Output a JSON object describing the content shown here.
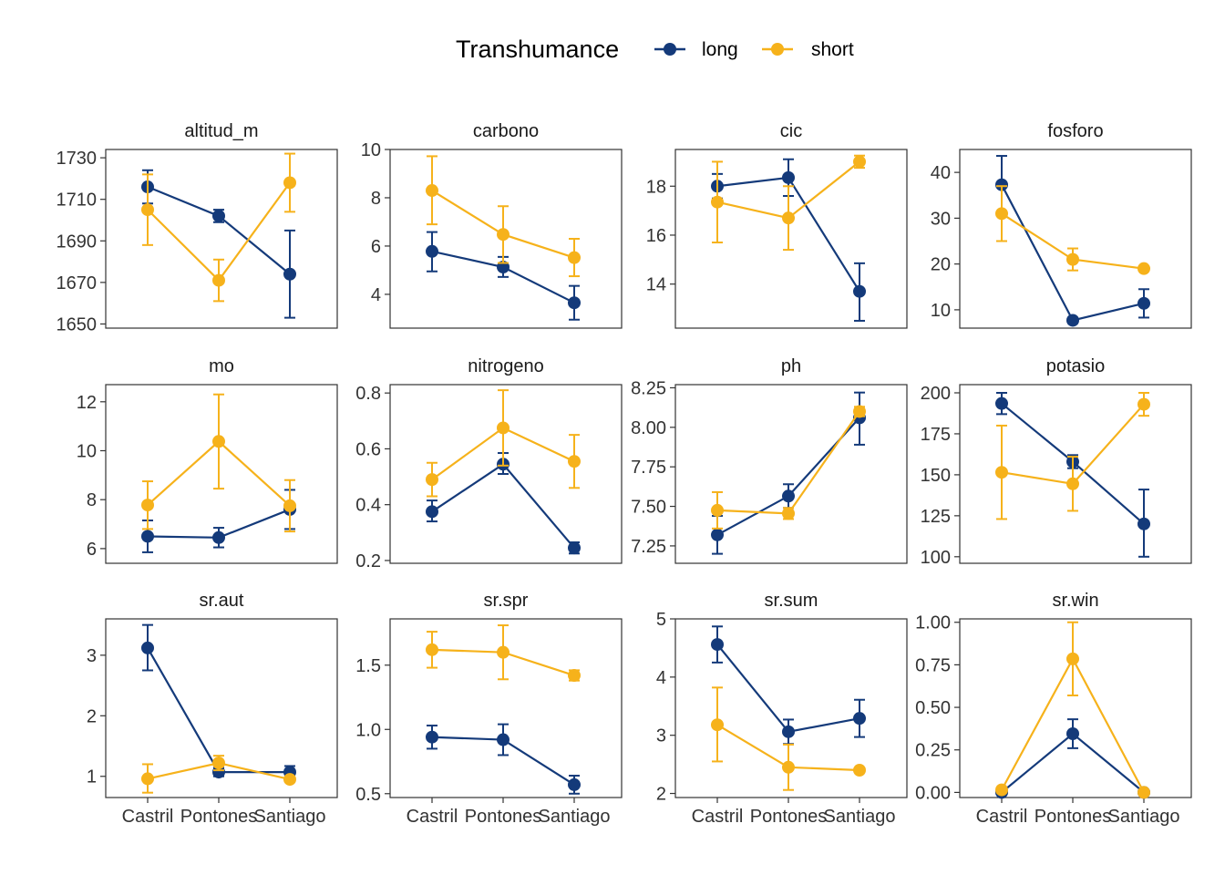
{
  "legend": {
    "title": "Transhumance",
    "position": "top",
    "items": [
      {
        "label": "long",
        "color": "#143a7a"
      },
      {
        "label": "short",
        "color": "#f6b21b"
      }
    ]
  },
  "chart_data": {
    "type": "line",
    "layout": "facet-grid-3x4",
    "grid": false,
    "x_categories": [
      "Castril",
      "Pontones",
      "Santiago"
    ],
    "series_names": [
      "long",
      "short"
    ],
    "series_colors": {
      "long": "#143a7a",
      "short": "#f6b21b"
    },
    "facets": [
      {
        "title": "altitud_m",
        "ylim": [
          1648,
          1734
        ],
        "yticks": [
          1650,
          1670,
          1690,
          1710,
          1730
        ],
        "tick_labels": [
          "1650",
          "1670",
          "1690",
          "1710",
          "1730"
        ],
        "series": [
          {
            "name": "long",
            "y": [
              1716,
              1702,
              1674
            ],
            "lo": [
              1708,
              1699,
              1653
            ],
            "hi": [
              1724,
              1705,
              1695
            ]
          },
          {
            "name": "short",
            "y": [
              1705,
              1671,
              1718
            ],
            "lo": [
              1688,
              1661,
              1704
            ],
            "hi": [
              1722,
              1681,
              1732
            ]
          }
        ]
      },
      {
        "title": "carbono",
        "ylim": [
          2.6,
          10.0
        ],
        "yticks": [
          4,
          6,
          8,
          10
        ],
        "tick_labels": [
          "4",
          "6",
          "8",
          "10"
        ],
        "series": [
          {
            "name": "long",
            "y": [
              5.78,
              5.13,
              3.65
            ],
            "lo": [
              4.95,
              4.72,
              2.95
            ],
            "hi": [
              6.58,
              5.55,
              4.35
            ]
          },
          {
            "name": "short",
            "y": [
              8.3,
              6.48,
              5.52
            ],
            "lo": [
              6.9,
              5.3,
              4.75
            ],
            "hi": [
              9.72,
              7.65,
              6.3
            ]
          }
        ]
      },
      {
        "title": "cic",
        "ylim": [
          12.2,
          19.5
        ],
        "yticks": [
          14,
          16,
          18
        ],
        "tick_labels": [
          "14",
          "16",
          "18"
        ],
        "series": [
          {
            "name": "long",
            "y": [
              18.0,
              18.35,
              13.7
            ],
            "lo": [
              17.5,
              17.6,
              12.5
            ],
            "hi": [
              18.5,
              19.1,
              14.85
            ]
          },
          {
            "name": "short",
            "y": [
              17.35,
              16.7,
              19.0
            ],
            "lo": [
              15.7,
              15.4,
              18.75
            ],
            "hi": [
              19.0,
              18.0,
              19.25
            ]
          }
        ]
      },
      {
        "title": "fosforo",
        "ylim": [
          6.0,
          45.0
        ],
        "yticks": [
          10,
          20,
          30,
          40
        ],
        "tick_labels": [
          "10",
          "20",
          "30",
          "40"
        ],
        "series": [
          {
            "name": "long",
            "y": [
              37.3,
              7.7,
              11.4
            ],
            "lo": [
              31.0,
              7.1,
              8.3
            ],
            "hi": [
              43.6,
              8.3,
              14.5
            ]
          },
          {
            "name": "short",
            "y": [
              31.0,
              21.0,
              19.0
            ],
            "lo": [
              25.0,
              18.6,
              18.6
            ],
            "hi": [
              37.0,
              23.4,
              19.4
            ]
          }
        ]
      },
      {
        "title": "mo",
        "ylim": [
          5.4,
          12.7
        ],
        "yticks": [
          6,
          8,
          10,
          12
        ],
        "tick_labels": [
          "6",
          "8",
          "10",
          "12"
        ],
        "series": [
          {
            "name": "long",
            "y": [
              6.5,
              6.45,
              7.6
            ],
            "lo": [
              5.85,
              6.05,
              6.8
            ],
            "hi": [
              7.15,
              6.85,
              8.4
            ]
          },
          {
            "name": "short",
            "y": [
              7.78,
              10.38,
              7.75
            ],
            "lo": [
              6.8,
              8.45,
              6.7
            ],
            "hi": [
              8.75,
              12.3,
              8.8
            ]
          }
        ]
      },
      {
        "title": "nitrogeno",
        "ylim": [
          0.19,
          0.83
        ],
        "yticks": [
          0.2,
          0.4,
          0.6,
          0.8
        ],
        "tick_labels": [
          "0.2",
          "0.4",
          "0.6",
          "0.8"
        ],
        "series": [
          {
            "name": "long",
            "y": [
              0.375,
              0.545,
              0.245
            ],
            "lo": [
              0.34,
              0.51,
              0.225
            ],
            "hi": [
              0.415,
              0.585,
              0.265
            ]
          },
          {
            "name": "short",
            "y": [
              0.49,
              0.675,
              0.555
            ],
            "lo": [
              0.43,
              0.54,
              0.46
            ],
            "hi": [
              0.55,
              0.81,
              0.65
            ]
          }
        ]
      },
      {
        "title": "ph",
        "ylim": [
          7.14,
          8.27
        ],
        "yticks": [
          7.25,
          7.5,
          7.75,
          8.0,
          8.25
        ],
        "tick_labels": [
          "7.25",
          "7.50",
          "7.75",
          "8.00",
          "8.25"
        ],
        "series": [
          {
            "name": "long",
            "y": [
              7.32,
              7.565,
              8.06
            ],
            "lo": [
              7.2,
              7.49,
              7.89
            ],
            "hi": [
              7.44,
              7.64,
              8.22
            ]
          },
          {
            "name": "short",
            "y": [
              7.475,
              7.455,
              8.1
            ],
            "lo": [
              7.36,
              7.42,
              8.07
            ],
            "hi": [
              7.59,
              7.49,
              8.13
            ]
          }
        ]
      },
      {
        "title": "potasio",
        "ylim": [
          96,
          205
        ],
        "yticks": [
          100,
          125,
          150,
          175,
          200
        ],
        "tick_labels": [
          "100",
          "125",
          "150",
          "175",
          "200"
        ],
        "series": [
          {
            "name": "long",
            "y": [
              193.5,
              158.0,
              120.0
            ],
            "lo": [
              187,
              154,
              100
            ],
            "hi": [
              200,
              162,
              141
            ]
          },
          {
            "name": "short",
            "y": [
              151.5,
              144.5,
              193.0
            ],
            "lo": [
              123,
              128,
              186
            ],
            "hi": [
              180,
              161,
              200
            ]
          }
        ]
      },
      {
        "title": "sr.aut",
        "ylim": [
          0.65,
          3.6
        ],
        "yticks": [
          1,
          2,
          3
        ],
        "tick_labels": [
          "1",
          "2",
          "3"
        ],
        "series": [
          {
            "name": "long",
            "y": [
              3.12,
              1.07,
              1.07
            ],
            "lo": [
              2.75,
              1.0,
              0.97
            ],
            "hi": [
              3.5,
              1.14,
              1.17
            ]
          },
          {
            "name": "short",
            "y": [
              0.96,
              1.22,
              0.95
            ],
            "lo": [
              0.73,
              1.1,
              0.92
            ],
            "hi": [
              1.2,
              1.34,
              0.98
            ]
          }
        ]
      },
      {
        "title": "sr.spr",
        "ylim": [
          0.47,
          1.86
        ],
        "yticks": [
          0.5,
          1.0,
          1.5
        ],
        "tick_labels": [
          "0.5",
          "1.0",
          "1.5"
        ],
        "series": [
          {
            "name": "long",
            "y": [
              0.94,
              0.92,
              0.57
            ],
            "lo": [
              0.85,
              0.8,
              0.5
            ],
            "hi": [
              1.03,
              1.04,
              0.64
            ]
          },
          {
            "name": "short",
            "y": [
              1.62,
              1.6,
              1.42
            ],
            "lo": [
              1.48,
              1.39,
              1.38
            ],
            "hi": [
              1.76,
              1.81,
              1.46
            ]
          }
        ]
      },
      {
        "title": "sr.sum",
        "ylim": [
          1.93,
          5.0
        ],
        "yticks": [
          2,
          3,
          4,
          5
        ],
        "tick_labels": [
          "2",
          "3",
          "4",
          "5"
        ],
        "series": [
          {
            "name": "long",
            "y": [
              4.56,
              3.06,
              3.29
            ],
            "lo": [
              4.25,
              2.85,
              2.97
            ],
            "hi": [
              4.87,
              3.27,
              3.61
            ]
          },
          {
            "name": "short",
            "y": [
              3.18,
              2.45,
              2.4
            ],
            "lo": [
              2.55,
              2.06,
              2.37
            ],
            "hi": [
              3.82,
              2.84,
              2.43
            ]
          }
        ]
      },
      {
        "title": "sr.win",
        "ylim": [
          -0.03,
          1.02
        ],
        "yticks": [
          0.0,
          0.25,
          0.5,
          0.75,
          1.0
        ],
        "tick_labels": [
          "0.00",
          "0.25",
          "0.50",
          "0.75",
          "1.00"
        ],
        "series": [
          {
            "name": "long",
            "y": [
              0.0,
              0.345,
              0.0
            ],
            "lo": [
              0.0,
              0.26,
              0.0
            ],
            "hi": [
              0.0,
              0.43,
              0.0
            ]
          },
          {
            "name": "short",
            "y": [
              0.015,
              0.785,
              0.0
            ],
            "lo": [
              0.0,
              0.57,
              0.0
            ],
            "hi": [
              0.03,
              1.0,
              0.0
            ]
          }
        ]
      }
    ]
  }
}
